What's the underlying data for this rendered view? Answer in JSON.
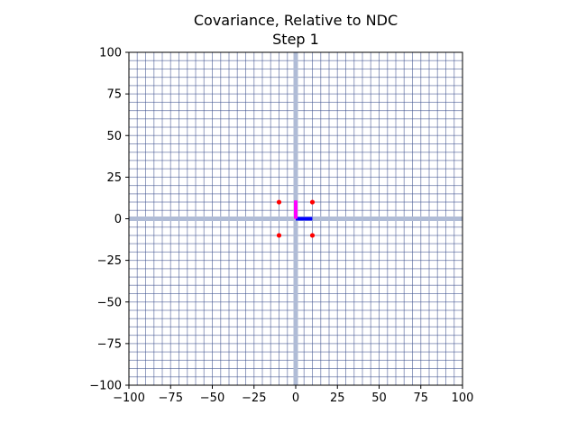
{
  "chart_data": {
    "type": "scatter",
    "title": "Covariance, Relative to NDC",
    "subtitle": "Step 1",
    "xlabel": "",
    "ylabel": "",
    "xlim": [
      -100,
      100
    ],
    "ylim": [
      -100,
      100
    ],
    "x_ticks": [
      -100,
      -75,
      -50,
      -25,
      0,
      25,
      50,
      75,
      100
    ],
    "y_ticks": [
      -100,
      -75,
      -50,
      -25,
      0,
      25,
      50,
      75,
      100
    ],
    "x_tick_labels": [
      "−100",
      "−75",
      "−50",
      "−25",
      "0",
      "25",
      "50",
      "75",
      "100"
    ],
    "y_tick_labels": [
      "−100",
      "−75",
      "−50",
      "−25",
      "0",
      "25",
      "50",
      "75",
      "100"
    ],
    "grid": true,
    "grid_step": 5,
    "points": [
      {
        "x": -10,
        "y": 10
      },
      {
        "x": 10,
        "y": 10
      },
      {
        "x": -10,
        "y": -10
      },
      {
        "x": 10,
        "y": -10
      }
    ],
    "vectors": [
      {
        "x0": 0,
        "y0": 0,
        "x1": 10,
        "y1": 0,
        "color": "#0000ff"
      },
      {
        "x0": 0,
        "y0": 0,
        "x1": 0,
        "y1": 11,
        "color": "#ff00ff"
      }
    ],
    "colors": {
      "points": "#ff0000",
      "grid": "#3b4f8c",
      "axis_lines": "#b0bcd6"
    }
  }
}
